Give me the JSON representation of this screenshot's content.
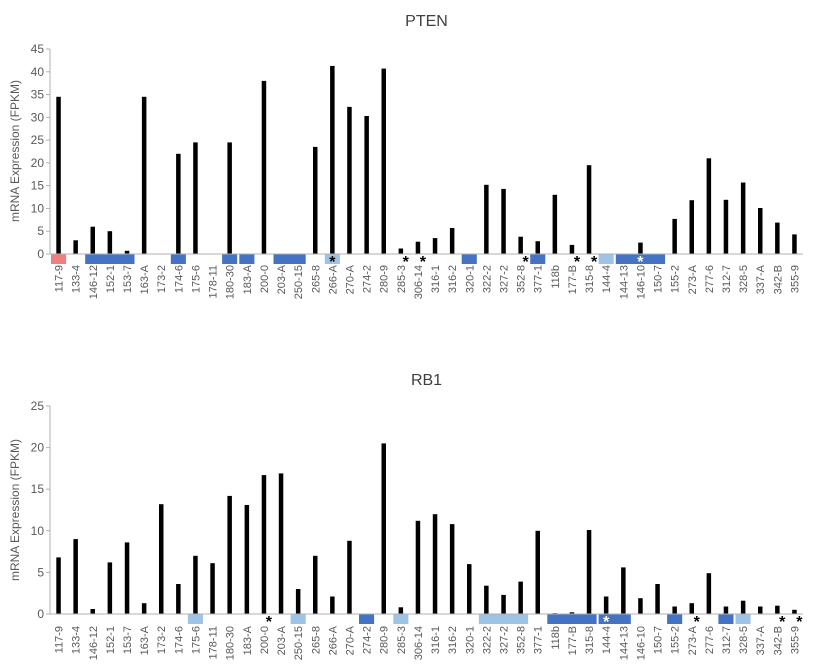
{
  "colors": {
    "bar": "#000000",
    "axis": "#b0b0b0",
    "text": "#595959",
    "title": "#404040",
    "blue": "#4472c4",
    "light_blue": "#9dc3e6",
    "pink": "#f08080"
  },
  "chart_data": [
    {
      "type": "bar",
      "title": "PTEN",
      "ylabel": "mRNA Expression (FPKM)",
      "ylim": [
        0,
        45
      ],
      "yticks": [
        "0",
        "5",
        "10",
        "15",
        "20",
        "25",
        "30",
        "35",
        "40",
        "45"
      ],
      "legend": "none",
      "grid": false,
      "categories": [
        "117-9",
        "133-4",
        "146-12",
        "152-1",
        "153-7",
        "163-A",
        "173-2",
        "174-6",
        "175-6",
        "178-11",
        "180-30",
        "183-A",
        "200-0",
        "203-A",
        "250-15",
        "265-8",
        "266-A",
        "270-A",
        "274-2",
        "280-9",
        "285-3",
        "306-14",
        "316-1",
        "316-2",
        "320-1",
        "322-2",
        "327-2",
        "352-8",
        "377-1",
        "118b",
        "177-B",
        "315-8",
        "144-4",
        "144-13",
        "146-10",
        "150-7",
        "155-2",
        "273-A",
        "277-6",
        "312-7",
        "328-5",
        "337-A",
        "342-B",
        "355-9"
      ],
      "values": [
        34.5,
        3.0,
        6.0,
        5.0,
        0.7,
        34.5,
        0,
        22.0,
        24.5,
        0,
        24.5,
        0,
        38.0,
        0,
        0,
        23.5,
        41.3,
        32.3,
        30.3,
        40.7,
        1.2,
        2.7,
        3.5,
        5.7,
        0,
        15.2,
        14.3,
        3.8,
        2.8,
        13.0,
        2.0,
        19.5,
        0,
        0,
        2.5,
        0,
        7.7,
        11.8,
        21.0,
        11.9,
        15.7,
        10.1,
        6.9,
        4.3
      ],
      "asterisks": [
        "266-A",
        "285-3",
        "306-14",
        "352-8",
        "177-B",
        "315-8",
        "146-10"
      ],
      "color_strip": [
        {
          "from": "117-9",
          "to": "117-9",
          "color": "pink"
        },
        {
          "from": "146-12",
          "to": "153-7",
          "color": "blue"
        },
        {
          "from": "174-6",
          "to": "174-6",
          "color": "blue"
        },
        {
          "from": "180-30",
          "to": "180-30",
          "color": "blue"
        },
        {
          "from": "183-A",
          "to": "183-A",
          "color": "blue"
        },
        {
          "from": "203-A",
          "to": "250-15",
          "color": "blue"
        },
        {
          "from": "266-A",
          "to": "266-A",
          "color": "light_blue"
        },
        {
          "from": "320-1",
          "to": "320-1",
          "color": "blue"
        },
        {
          "from": "377-1",
          "to": "377-1",
          "color": "blue"
        },
        {
          "from": "144-4",
          "to": "144-4",
          "color": "light_blue"
        },
        {
          "from": "144-13",
          "to": "150-7",
          "color": "blue"
        }
      ]
    },
    {
      "type": "bar",
      "title": "RB1",
      "ylabel": "mRNA Expression (FPKM)",
      "ylim": [
        0,
        25
      ],
      "yticks": [
        "0",
        "5",
        "10",
        "15",
        "20",
        "25"
      ],
      "legend": "none",
      "grid": false,
      "categories": [
        "117-9",
        "133-4",
        "146-12",
        "152-1",
        "153-7",
        "163-A",
        "173-2",
        "174-6",
        "175-6",
        "178-11",
        "180-30",
        "183-A",
        "200-0",
        "203-A",
        "250-15",
        "265-8",
        "266-A",
        "270-A",
        "274-2",
        "280-9",
        "285-3",
        "306-14",
        "316-1",
        "316-2",
        "320-1",
        "322-2",
        "327-2",
        "352-8",
        "377-1",
        "118b",
        "177-B",
        "315-8",
        "144-4",
        "144-13",
        "146-10",
        "150-7",
        "155-2",
        "273-A",
        "277-6",
        "312-7",
        "328-5",
        "337-A",
        "342-B",
        "355-9"
      ],
      "values": [
        6.8,
        9.0,
        0.6,
        6.2,
        8.6,
        1.3,
        13.2,
        3.6,
        7.0,
        6.1,
        14.2,
        13.1,
        16.7,
        16.9,
        3.0,
        7.0,
        2.1,
        8.8,
        0,
        20.5,
        0.8,
        11.2,
        12.0,
        10.8,
        6.0,
        3.4,
        2.3,
        3.9,
        10.0,
        0.1,
        0.2,
        10.1,
        2.1,
        5.6,
        1.9,
        3.6,
        0.9,
        1.3,
        4.9,
        0.9,
        1.6,
        0.9,
        1.0,
        0.5
      ],
      "asterisks": [
        "200-0",
        "144-4",
        "273-A",
        "342-B",
        "355-9"
      ],
      "color_strip": [
        {
          "from": "175-6",
          "to": "175-6",
          "color": "light_blue"
        },
        {
          "from": "250-15",
          "to": "250-15",
          "color": "light_blue"
        },
        {
          "from": "274-2",
          "to": "274-2",
          "color": "blue"
        },
        {
          "from": "285-3",
          "to": "285-3",
          "color": "light_blue"
        },
        {
          "from": "322-2",
          "to": "352-8",
          "color": "light_blue"
        },
        {
          "from": "118b",
          "to": "315-8",
          "color": "blue"
        },
        {
          "from": "144-4",
          "to": "144-13",
          "color": "blue"
        },
        {
          "from": "155-2",
          "to": "155-2",
          "color": "blue"
        },
        {
          "from": "312-7",
          "to": "312-7",
          "color": "blue"
        },
        {
          "from": "328-5",
          "to": "328-5",
          "color": "light_blue"
        }
      ]
    }
  ]
}
